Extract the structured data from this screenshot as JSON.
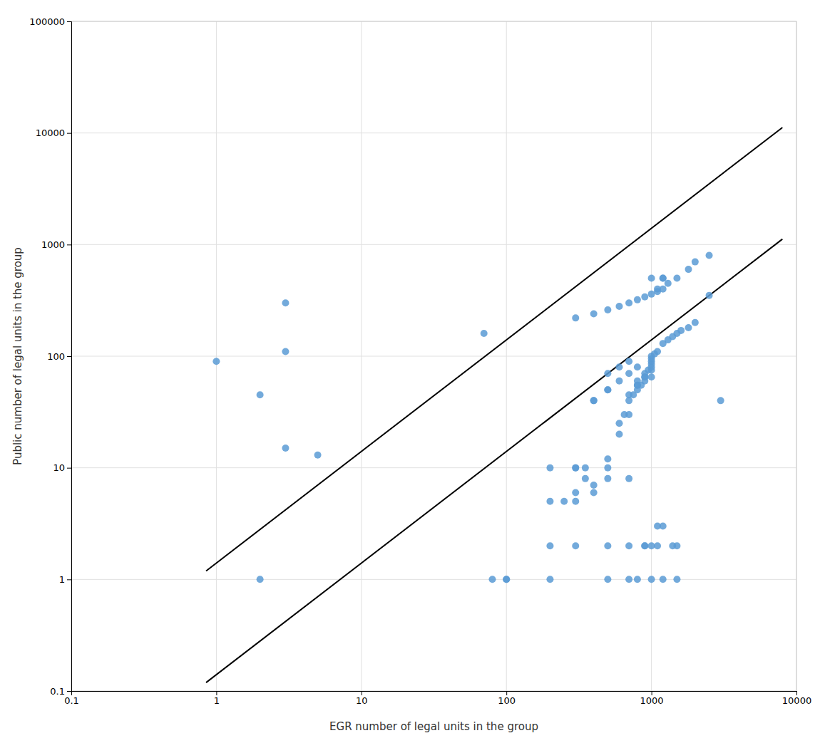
{
  "chart_data": {
    "type": "scatter",
    "xlabel": "EGR number of legal units in the group",
    "ylabel": "Public number of legal units in the group",
    "log": true,
    "grid": true,
    "xlim": [
      0.1,
      10000
    ],
    "ylim": [
      0.1,
      100000
    ],
    "xticks": [
      0.1,
      1,
      10,
      100,
      1000,
      10000
    ],
    "yticks": [
      0.1,
      1,
      10,
      100,
      1000,
      10000,
      100000
    ],
    "series": [
      {
        "type": "scatter",
        "color": "#5B9BD5",
        "x": [
          1,
          2,
          2,
          3,
          3,
          3,
          5,
          70,
          80,
          100,
          200,
          200,
          250,
          300,
          300,
          350,
          400,
          400,
          500,
          500,
          500,
          500,
          600,
          600,
          650,
          700,
          700,
          700,
          700,
          750,
          800,
          800,
          800,
          850,
          900,
          900,
          900,
          950,
          1000,
          1000,
          1000,
          1000,
          1000,
          1000,
          1000,
          1050,
          1100,
          1100,
          1200,
          1200,
          1200,
          1300,
          1400,
          1500,
          1600,
          1800,
          2000,
          2500,
          3000,
          100,
          200,
          500,
          700,
          800,
          1000,
          1200,
          1500,
          300,
          400,
          500,
          600,
          700,
          800,
          900,
          1000,
          1100,
          1200,
          1300,
          1500,
          1800,
          2000,
          2500,
          300,
          350,
          400,
          500,
          600,
          700,
          800,
          900,
          1000,
          1100,
          1200,
          1400,
          1500,
          200,
          300,
          400,
          500,
          600,
          700,
          800,
          900,
          1000,
          300,
          500,
          700,
          900,
          1100
        ],
        "values": [
          90,
          1,
          45,
          300,
          110,
          15,
          13,
          160,
          1,
          1,
          2,
          5,
          5,
          5,
          10,
          10,
          6,
          7,
          8,
          10,
          12,
          50,
          20,
          25,
          30,
          30,
          40,
          45,
          8,
          45,
          50,
          55,
          60,
          55,
          65,
          70,
          65,
          75,
          75,
          80,
          85,
          90,
          95,
          100,
          500,
          105,
          110,
          400,
          130,
          500,
          500,
          140,
          150,
          160,
          170,
          180,
          200,
          350,
          40,
          1,
          1,
          1,
          1,
          1,
          1,
          1,
          1,
          220,
          240,
          260,
          280,
          300,
          320,
          340,
          360,
          380,
          400,
          450,
          500,
          600,
          700,
          800,
          6,
          8,
          40,
          70,
          80,
          90,
          55,
          60,
          65,
          3,
          3,
          2,
          2,
          10,
          10,
          40,
          50,
          60,
          70,
          80,
          2,
          2,
          2,
          2,
          2,
          2,
          2
        ]
      },
      {
        "type": "line",
        "color": "#000000",
        "x": [
          0.85,
          8000
        ],
        "values": [
          1.19,
          11200
        ]
      },
      {
        "type": "line",
        "color": "#000000",
        "x": [
          0.85,
          8000
        ],
        "values": [
          0.119,
          1120
        ]
      }
    ]
  }
}
